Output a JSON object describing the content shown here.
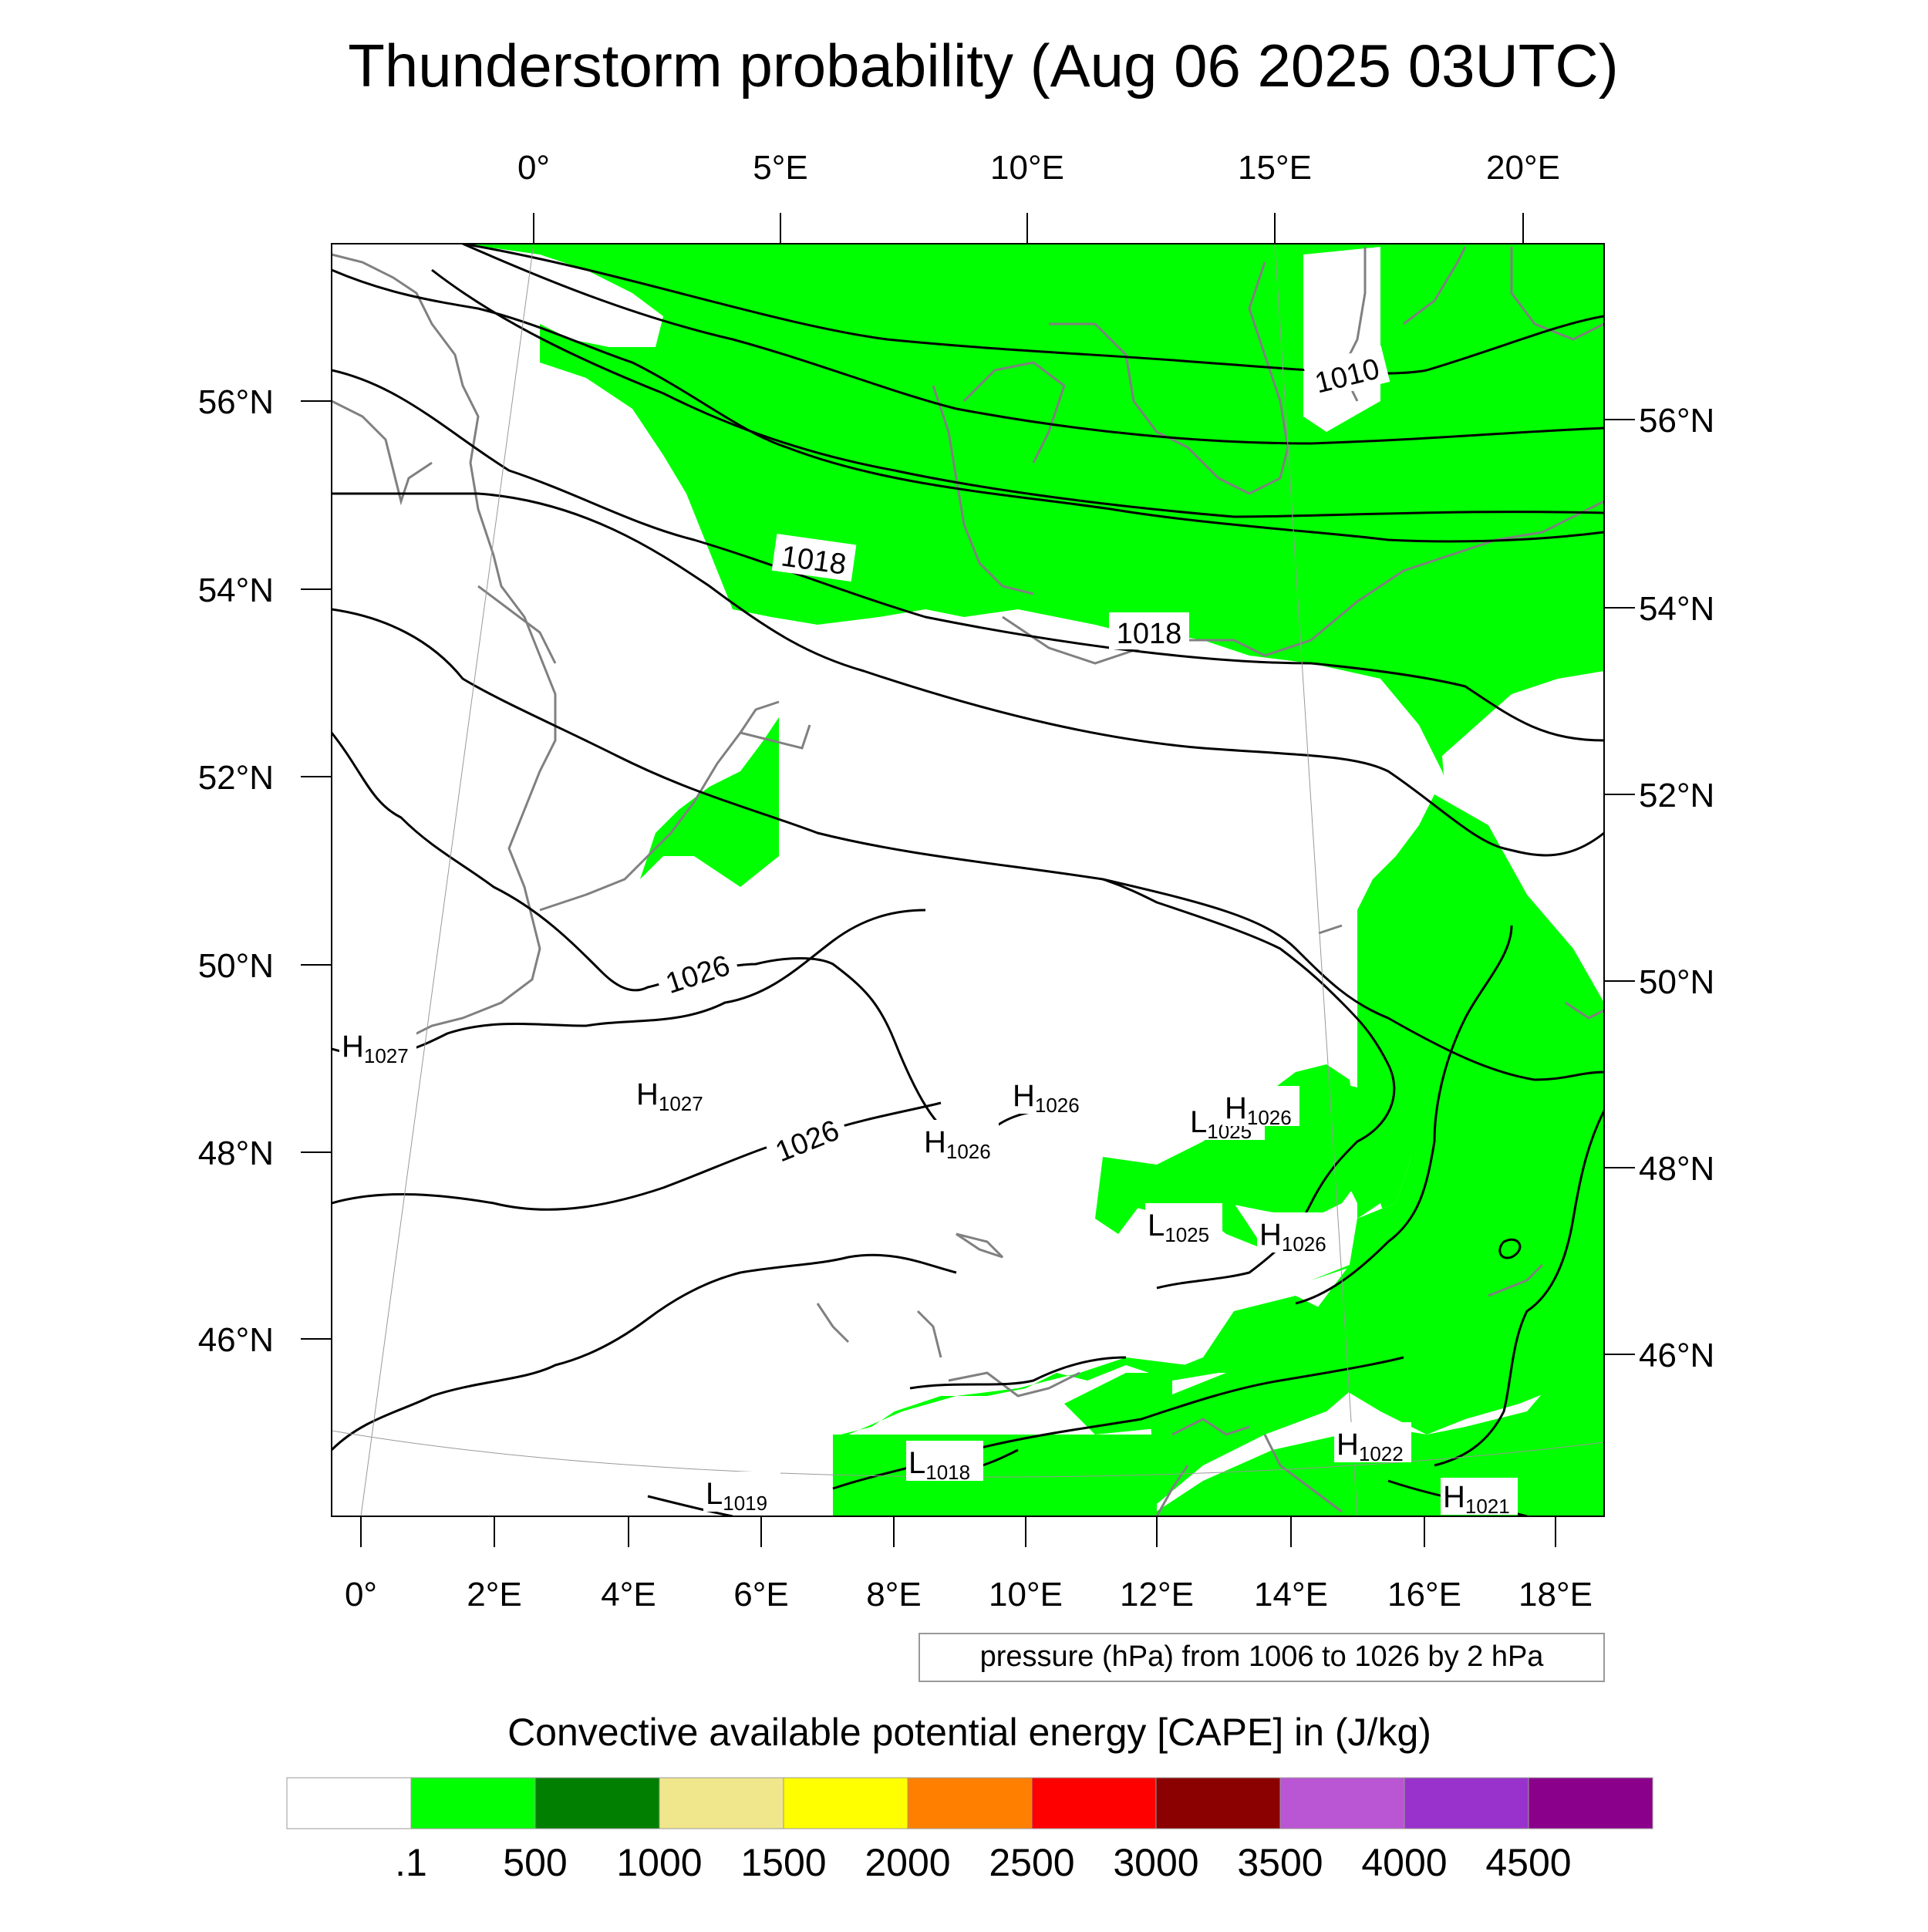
{
  "title": "Thunderstorm probability (Aug 06 2025 03UTC)",
  "top_lon_labels": [
    "0°",
    "5°E",
    "10°E",
    "15°E",
    "20°E"
  ],
  "bottom_lon_labels": [
    "0°",
    "2°E",
    "4°E",
    "6°E",
    "8°E",
    "10°E",
    "12°E",
    "14°E",
    "16°E",
    "18°E"
  ],
  "left_lat_labels": [
    "56°N",
    "54°N",
    "52°N",
    "50°N",
    "48°N",
    "46°N"
  ],
  "right_lat_labels": [
    "56°N",
    "54°N",
    "52°N",
    "50°N",
    "48°N",
    "46°N"
  ],
  "contour_labels": [
    "1010",
    "1018",
    "1018",
    "1026",
    "1026"
  ],
  "pressure_centers": [
    {
      "letter": "H",
      "value": "1027"
    },
    {
      "letter": "H",
      "value": "1027"
    },
    {
      "letter": "H",
      "value": "1026"
    },
    {
      "letter": "H",
      "value": "1026"
    },
    {
      "letter": "L",
      "value": "1025"
    },
    {
      "letter": "H",
      "value": "1026"
    },
    {
      "letter": "L",
      "value": "1025"
    },
    {
      "letter": "H",
      "value": "1026"
    },
    {
      "letter": "L",
      "value": "1018"
    },
    {
      "letter": "L",
      "value": "1019"
    },
    {
      "letter": "H",
      "value": "1022"
    },
    {
      "letter": "H",
      "value": "1021"
    }
  ],
  "pressure_note": "pressure (hPa) from 1006 to 1026 by 2 hPa",
  "colorbar": {
    "title": "Convective available potential energy [CAPE] in (J/kg)",
    "colors": [
      "#ffffff",
      "#00ff00",
      "#007f00",
      "#f0e68c",
      "#ffff00",
      "#ff8000",
      "#ff0000",
      "#8b0000",
      "#ba55d3",
      "#9932cc",
      "#8b008b"
    ],
    "labels": [
      ".1",
      "500",
      "1000",
      "1500",
      "2000",
      "2500",
      "3000",
      "3500",
      "4000",
      "4500"
    ]
  },
  "colors": {
    "cape_fill": "#00ff00",
    "coast": "#808080",
    "isobar": "#000000"
  }
}
